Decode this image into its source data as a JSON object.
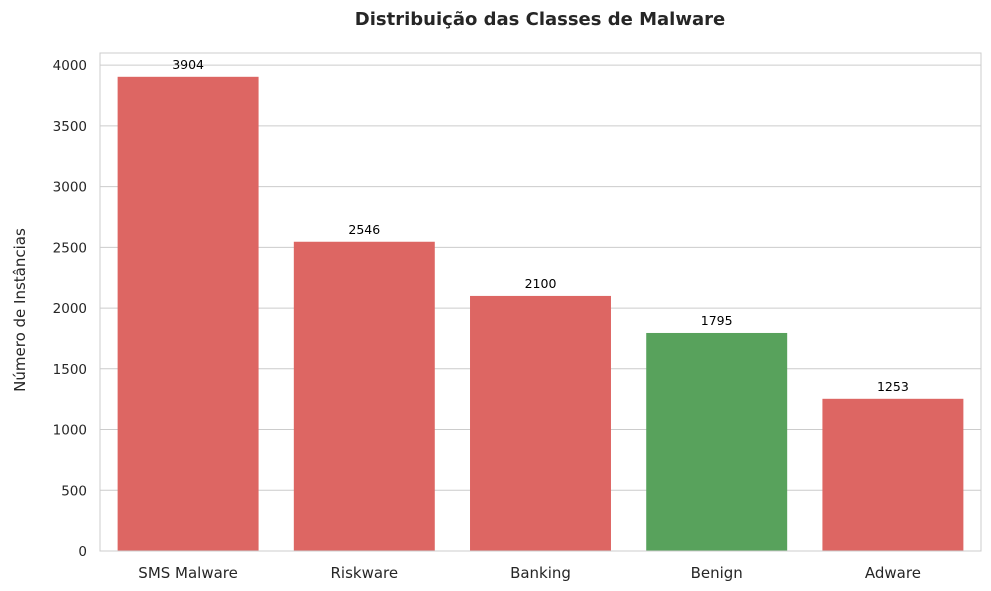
{
  "chart_data": {
    "type": "bar",
    "title": "Distribuição das Classes de Malware",
    "xlabel": "",
    "ylabel": "Número de Instâncias",
    "categories": [
      "SMS Malware",
      "Riskware",
      "Banking",
      "Benign",
      "Adware"
    ],
    "values": [
      3904,
      2546,
      2100,
      1795,
      1253
    ],
    "data_labels": [
      "3904",
      "2546",
      "2100",
      "1795",
      "1253"
    ],
    "yticks": [
      0,
      500,
      1000,
      1500,
      2000,
      2500,
      3000,
      3500,
      4000
    ],
    "ylim": [
      0,
      4100
    ],
    "grid": true,
    "colors": {
      "malware": "#dd6663",
      "benign": "#58a25c",
      "grid": "#cccccc",
      "frame": "#cccccc"
    },
    "bar_colors": [
      "#dd6663",
      "#dd6663",
      "#dd6663",
      "#58a25c",
      "#dd6663"
    ]
  }
}
